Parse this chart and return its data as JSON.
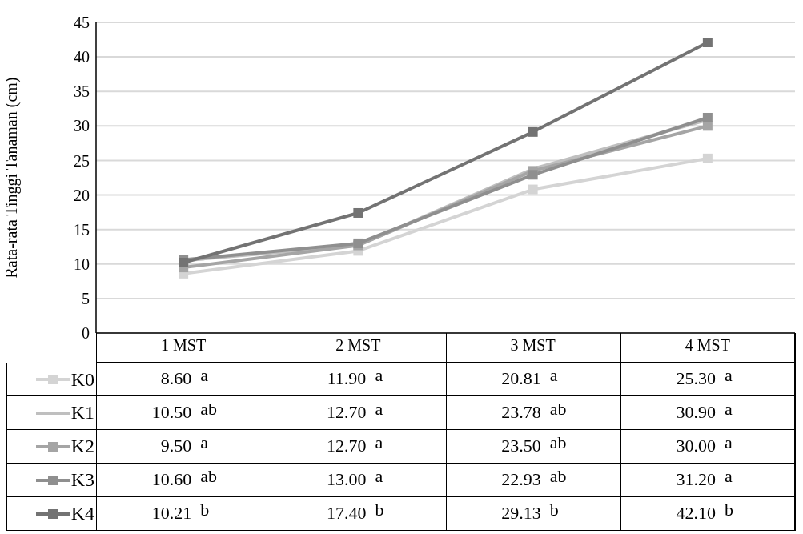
{
  "chart_data": {
    "type": "line",
    "ylabel": "Rata-rata Tinggi Tanaman (cm)",
    "categories": [
      "1 MST",
      "2 MST",
      "3 MST",
      "4 MST"
    ],
    "series": [
      {
        "name": "K0",
        "color": "#d4d4d4",
        "marker": "square",
        "values": [
          8.6,
          11.9,
          20.81,
          25.3
        ],
        "value_labels": [
          "8.60",
          "11.90",
          "20.81",
          "25.30"
        ]
      },
      {
        "name": "K1",
        "color": "#bfbfbf",
        "marker": "none",
        "values": [
          10.5,
          12.7,
          23.78,
          30.9
        ],
        "value_labels": [
          "10.50",
          "12.70",
          "23.78",
          "30.90"
        ]
      },
      {
        "name": "K2",
        "color": "#a5a5a5",
        "marker": "square",
        "values": [
          9.5,
          12.7,
          23.5,
          30.0
        ],
        "value_labels": [
          "9.50",
          "12.70",
          "23.50",
          "30.00"
        ]
      },
      {
        "name": "K3",
        "color": "#8f8f8f",
        "marker": "square",
        "values": [
          10.6,
          13.0,
          22.93,
          31.2
        ],
        "value_labels": [
          "10.60",
          "13.00",
          "22.93",
          "31.20"
        ]
      },
      {
        "name": "K4",
        "color": "#737373",
        "marker": "square",
        "values": [
          10.21,
          17.4,
          29.13,
          42.1
        ],
        "value_labels": [
          "10.21",
          "17.40",
          "29.13",
          "42.10"
        ]
      }
    ],
    "ylim": [
      0,
      45
    ],
    "yticks": [
      0,
      5,
      10,
      15,
      20,
      25,
      30,
      35,
      40,
      45
    ],
    "grid": "y",
    "legend": "bottom",
    "line_style": "solid",
    "annotations": [
      "a",
      "a",
      "a",
      "a",
      "ab",
      "a",
      "ab",
      "a",
      "a",
      "a",
      "ab",
      "a",
      "ab",
      "a",
      "ab",
      "a",
      "b",
      "b",
      "b",
      "b"
    ]
  }
}
